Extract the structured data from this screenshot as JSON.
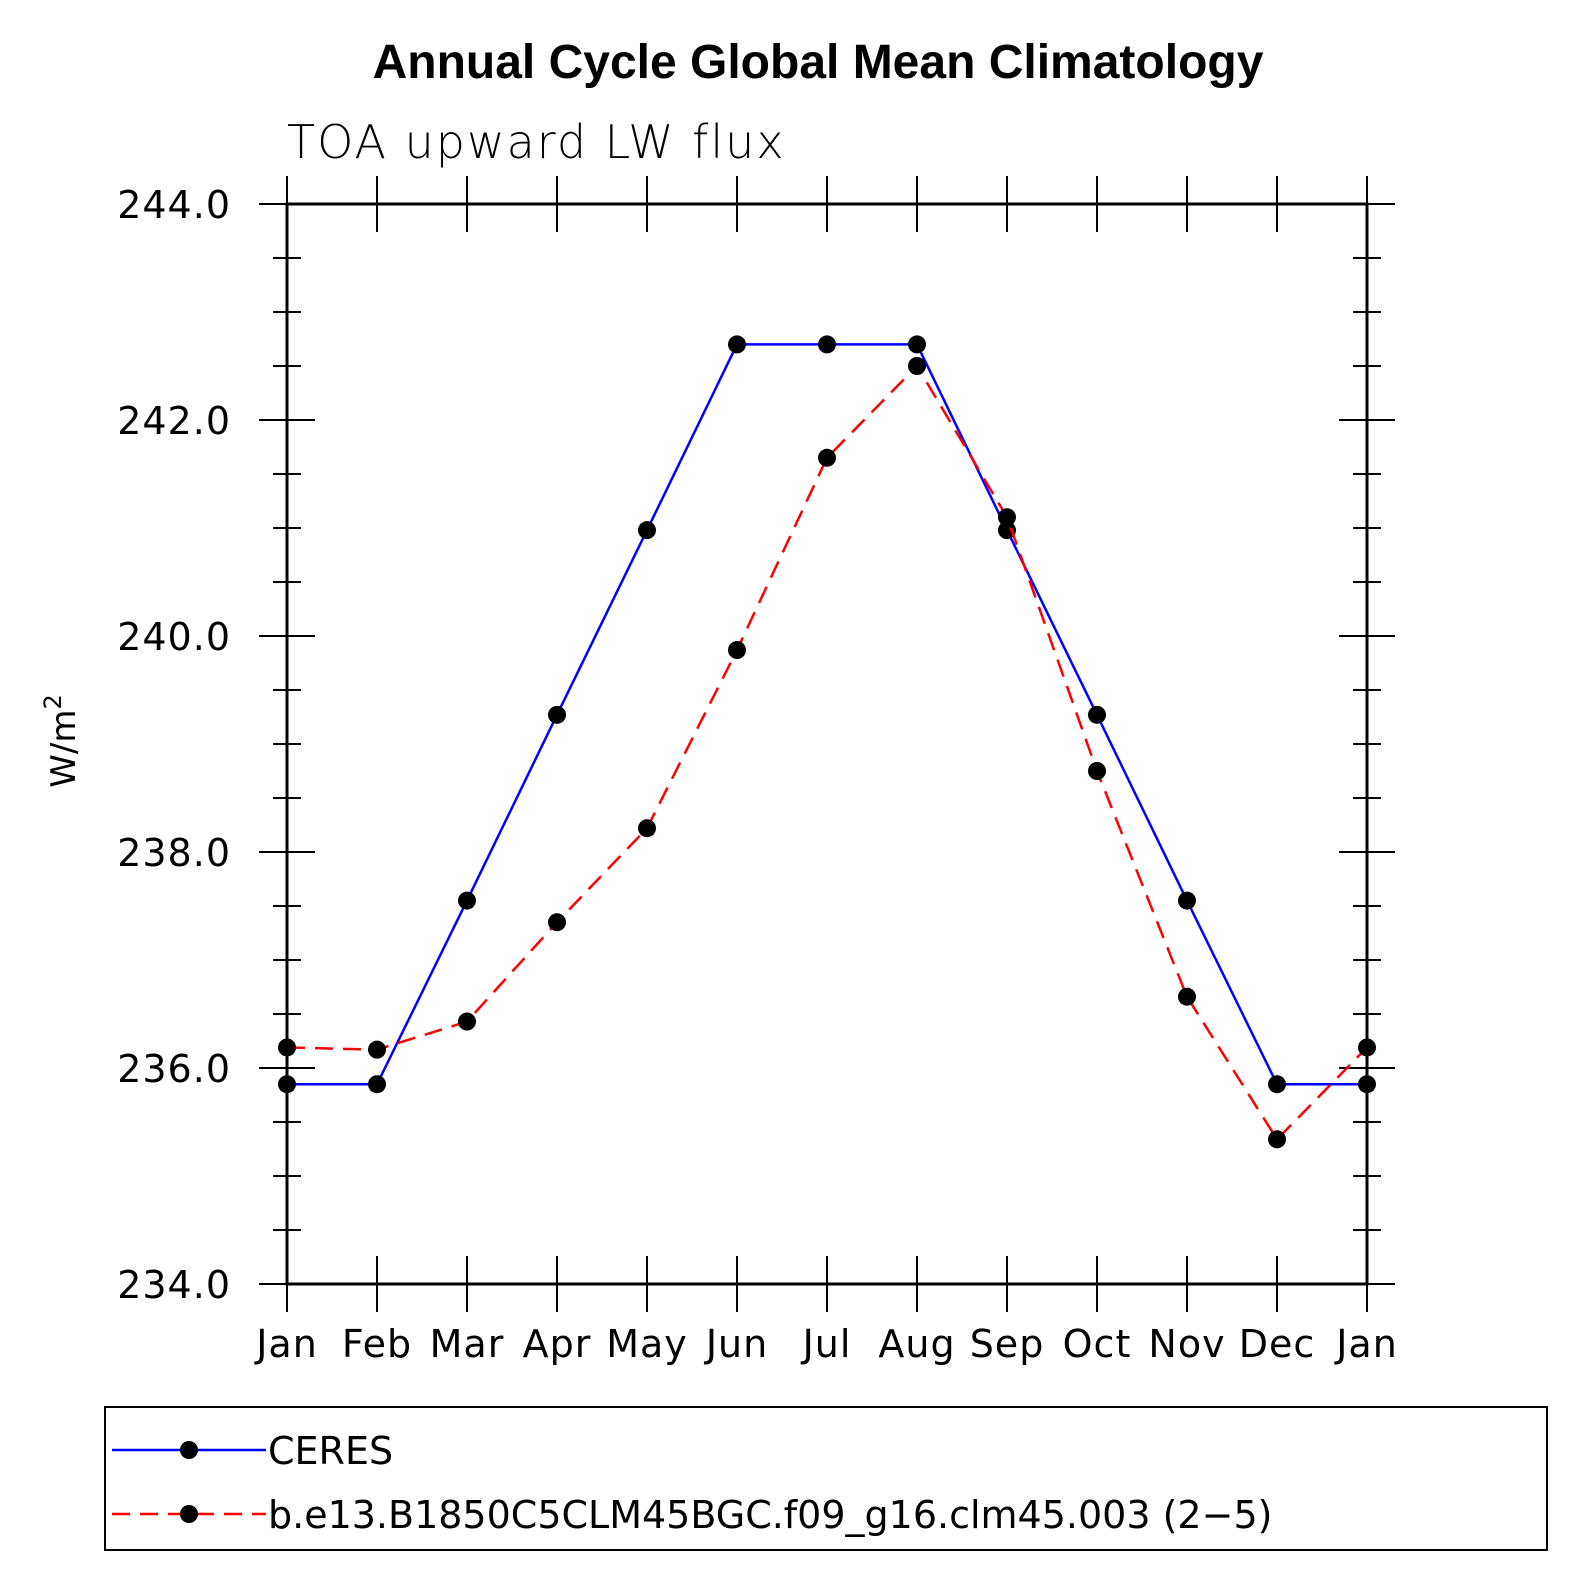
{
  "chart_data": {
    "type": "line",
    "title": "Annual Cycle Global Mean Climatology",
    "subtitle": "TOA upward LW flux",
    "xlabel": "",
    "ylabel": "W/m",
    "ylabel_superscript": "2",
    "categories": [
      "Jan",
      "Feb",
      "Mar",
      "Apr",
      "May",
      "Jun",
      "Jul",
      "Aug",
      "Sep",
      "Oct",
      "Nov",
      "Dec",
      "Jan"
    ],
    "ylim": [
      234.0,
      244.0
    ],
    "yticks": [
      234.0,
      236.0,
      238.0,
      240.0,
      242.0,
      244.0
    ],
    "ytick_labels": [
      "234.0",
      "236.0",
      "238.0",
      "240.0",
      "242.0",
      "244.0"
    ],
    "yminor_step": 0.5,
    "legend_position": "bottom",
    "series": [
      {
        "name": "CERES",
        "color": "#0000ff",
        "style": "solid",
        "values": [
          235.85,
          235.85,
          237.55,
          239.27,
          240.98,
          242.7,
          242.7,
          242.7,
          240.98,
          239.27,
          237.55,
          235.85,
          235.85
        ]
      },
      {
        "name": "b.e13.B1850C5CLM45BGC.f09_g16.clm45.003 (2−5)",
        "color": "#ff0000",
        "style": "dashed",
        "values": [
          236.19,
          236.17,
          236.43,
          237.35,
          238.22,
          239.87,
          241.65,
          242.5,
          241.1,
          238.75,
          236.66,
          235.34,
          236.19
        ]
      }
    ]
  }
}
